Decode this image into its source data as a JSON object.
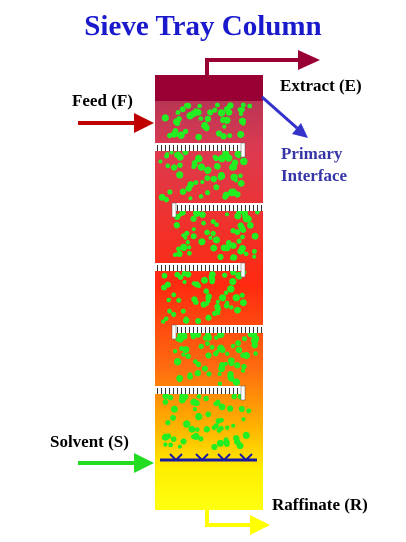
{
  "title": "Sieve Tray Column",
  "labels": {
    "feed": "Feed (F)",
    "extract": "Extract (E)",
    "interface": [
      "Primary",
      "Interface"
    ],
    "solvent": "Solvent (S)",
    "raffinate": "Raffinate (R)"
  }
}
